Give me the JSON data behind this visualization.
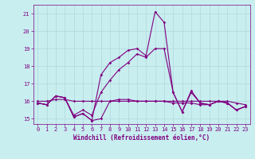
{
  "x": [
    0,
    1,
    2,
    3,
    4,
    5,
    6,
    7,
    8,
    9,
    10,
    11,
    12,
    13,
    14,
    15,
    16,
    17,
    18,
    19,
    20,
    21,
    22,
    23
  ],
  "line1": [
    15.9,
    15.8,
    16.3,
    16.2,
    15.1,
    15.3,
    14.9,
    15.0,
    16.0,
    16.1,
    16.1,
    16.0,
    16.0,
    16.0,
    16.0,
    15.9,
    15.9,
    15.9,
    15.8,
    15.8,
    16.0,
    15.9,
    15.5,
    15.7
  ],
  "line2": [
    15.9,
    15.8,
    16.3,
    16.2,
    15.1,
    15.3,
    14.9,
    17.5,
    18.2,
    18.5,
    18.9,
    19.0,
    18.6,
    21.1,
    20.5,
    16.5,
    15.4,
    16.6,
    15.9,
    15.8,
    16.0,
    15.9,
    15.5,
    15.7
  ],
  "line3": [
    16.0,
    16.0,
    16.1,
    16.1,
    16.0,
    16.0,
    16.0,
    16.0,
    16.0,
    16.0,
    16.0,
    16.0,
    16.0,
    16.0,
    16.0,
    16.0,
    16.0,
    16.0,
    16.0,
    16.0,
    16.0,
    16.0,
    15.9,
    15.8
  ],
  "line4": [
    15.9,
    15.8,
    16.3,
    16.2,
    15.2,
    15.5,
    15.2,
    16.5,
    17.2,
    17.8,
    18.2,
    18.7,
    18.5,
    19.0,
    19.0,
    16.5,
    15.4,
    16.5,
    15.9,
    15.8,
    16.0,
    15.9,
    15.5,
    15.7
  ],
  "ylim_min": 14.7,
  "ylim_max": 21.5,
  "yticks": [
    15,
    16,
    17,
    18,
    19,
    20,
    21
  ],
  "xlabel": "Windchill (Refroidissement éolien,°C)",
  "line_color": "#800080",
  "bg_color": "#c8eef0",
  "grid_color": "#b0d8da",
  "markersize": 1.8,
  "linewidth": 0.8,
  "tick_fontsize": 5.0,
  "xlabel_fontsize": 5.5
}
